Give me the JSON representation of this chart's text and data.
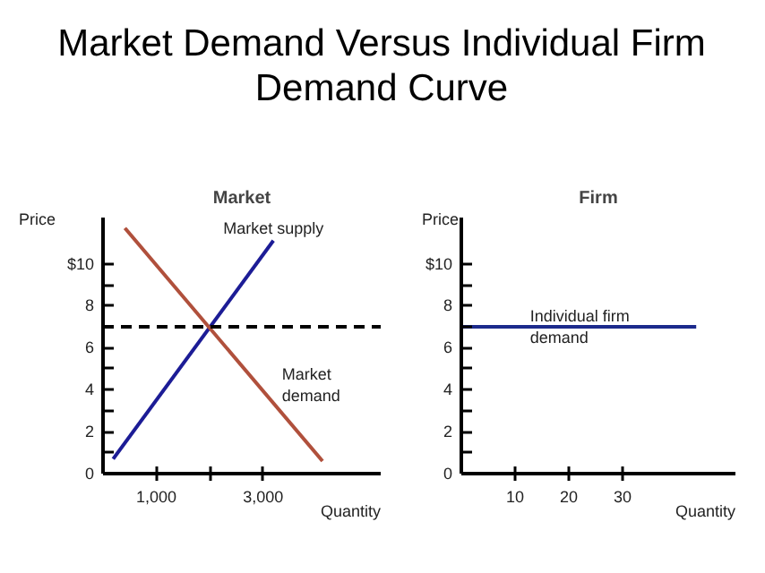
{
  "chart_data": [
    {
      "type": "line",
      "title": "Market Demand Versus Individual Firm Demand Curve",
      "subtitle": "Market",
      "xlabel": "Quantity",
      "ylabel": "Price",
      "series": [
        {
          "name": "Market supply",
          "color": "#1c1c96",
          "x": [
            190,
            3190
          ],
          "values": [
            0.7,
            11.1
          ]
        },
        {
          "name": "Market demand",
          "color": "#b0503c",
          "x": [
            410,
            4110
          ],
          "values": [
            11.7,
            0.6
          ]
        }
      ],
      "xlim": [
        0,
        5200
      ],
      "ylim": [
        0,
        12.2
      ],
      "xticks": [
        {
          "value": 1000,
          "label": "1,000"
        },
        {
          "value": 2000,
          "label": null
        },
        {
          "value": 3000,
          "label": "3,000"
        }
      ],
      "yticks": [
        0,
        {
          "value": 1,
          "label": null
        },
        2,
        {
          "value": 3,
          "label": null
        },
        4,
        {
          "value": 5,
          "label": null
        },
        6,
        {
          "value": 7,
          "label": null
        },
        8,
        {
          "value": 9,
          "label": null
        },
        {
          "value": 10,
          "label": "$10"
        }
      ],
      "ref_lines": [
        {
          "axis": "y",
          "value": 7,
          "label": null,
          "color": "#000000",
          "line_style": "dashed"
        }
      ],
      "grid": false,
      "legend": false,
      "marker": "none",
      "line_style": "solid"
    },
    {
      "type": "line",
      "subtitle": "Firm",
      "xlabel": "Quantity",
      "ylabel": "Price",
      "series": [
        {
          "color": "#1c2a8c",
          "x": [
            0,
            43.7
          ],
          "values": [
            7,
            7
          ]
        }
      ],
      "xlim": [
        0,
        51
      ],
      "ylim": [
        0,
        12.2
      ],
      "xticks": [
        10,
        20,
        30
      ],
      "yticks": [
        0,
        {
          "value": 1,
          "label": null
        },
        2,
        {
          "value": 3,
          "label": null
        },
        4,
        {
          "value": 5,
          "label": null
        },
        6,
        {
          "value": 7,
          "label": null
        },
        8,
        {
          "value": 9,
          "label": null
        },
        {
          "value": 10,
          "label": "$10"
        }
      ],
      "annotations": [
        {
          "text": "Individual firm demand",
          "x": 12.8,
          "y": 7
        }
      ],
      "grid": false,
      "legend": false,
      "marker": "none",
      "line_style": "solid"
    }
  ]
}
